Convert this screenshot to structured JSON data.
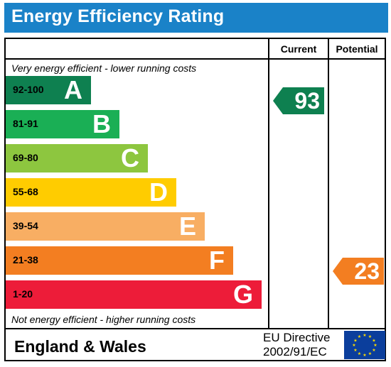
{
  "title": "Energy Efficiency Rating",
  "columns": {
    "current": "Current",
    "potential": "Potential"
  },
  "top_note": "Very energy efficient - lower running costs",
  "bottom_note": "Not energy efficient - higher running costs",
  "bands": [
    {
      "range": "92-100",
      "letter": "A",
      "color": "#0e8050"
    },
    {
      "range": "81-91",
      "letter": "B",
      "color": "#1aaf55"
    },
    {
      "range": "69-80",
      "letter": "C",
      "color": "#8dc63f"
    },
    {
      "range": "55-68",
      "letter": "D",
      "color": "#ffcc00"
    },
    {
      "range": "39-54",
      "letter": "E",
      "color": "#f8ae63"
    },
    {
      "range": "21-38",
      "letter": "F",
      "color": "#f37e21"
    },
    {
      "range": "1-20",
      "letter": "G",
      "color": "#ed1c39"
    }
  ],
  "current_rating": {
    "value": "93",
    "color": "#0e8050"
  },
  "potential_rating": {
    "value": "23",
    "color": "#f37e21"
  },
  "footer": {
    "region": "England & Wales",
    "directive_line1": "EU Directive",
    "directive_line2": "2002/91/EC"
  }
}
